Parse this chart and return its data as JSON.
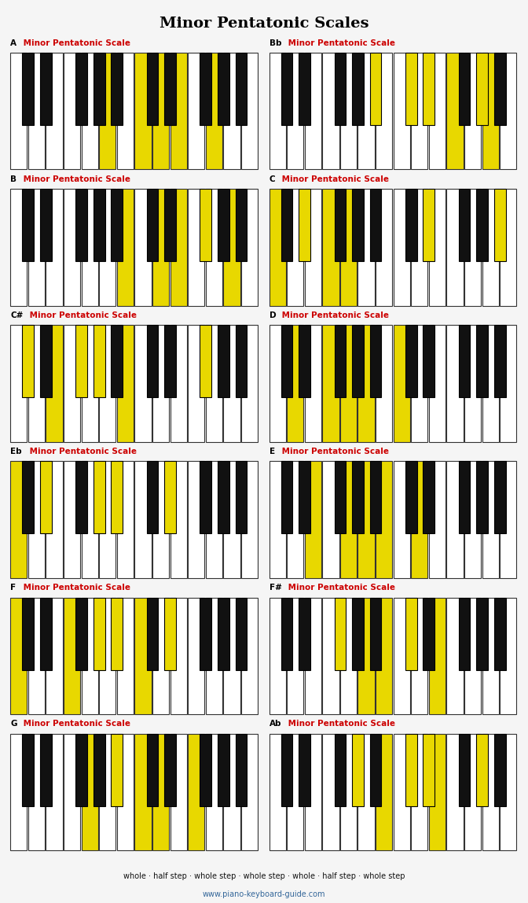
{
  "title": "Minor Pentatonic Scales",
  "subtitle": "whole · half step · whole step · whole step · whole · half step · whole step",
  "website": "www.piano-keyboard-guide.com",
  "bg_color": "#f5f5f5",
  "highlight_yellow": "#E8D800",
  "highlight_red": "#CC2200",
  "label_color_root": "#CC0000",
  "label_color_rest": "#CC0000",
  "keyboards": [
    {
      "label_root": "A",
      "label_rest": " Minor Pentatonic Scale",
      "white_keys": 14,
      "white_highlighted": [
        5,
        7,
        8,
        9,
        11
      ],
      "black_highlighted": []
    },
    {
      "label_root": "Bb",
      "label_rest": " Minor Pentatonic Scale",
      "white_keys": 14,
      "white_highlighted": [
        10,
        12
      ],
      "black_highlighted": [
        4,
        5,
        6,
        8
      ]
    },
    {
      "label_root": "B",
      "label_rest": " Minor Pentatonic Scale",
      "white_keys": 14,
      "white_highlighted": [
        6,
        8,
        9,
        12
      ],
      "black_highlighted": [
        7
      ]
    },
    {
      "label_root": "C",
      "label_rest": " Minor Pentatonic Scale",
      "white_keys": 14,
      "white_highlighted": [
        0,
        3,
        4
      ],
      "black_highlighted": [
        1,
        6,
        9
      ]
    },
    {
      "label_root": "C#",
      "label_rest": " Minor Pentatonic Scale",
      "white_keys": 14,
      "white_highlighted": [
        2,
        6
      ],
      "black_highlighted": [
        0,
        2,
        3,
        7
      ]
    },
    {
      "label_root": "D",
      "label_rest": " Minor Pentatonic Scale",
      "white_keys": 14,
      "white_highlighted": [
        1,
        3,
        4,
        5,
        7
      ],
      "black_highlighted": []
    },
    {
      "label_root": "Eb",
      "label_rest": " Minor Pentatonic Scale",
      "white_keys": 14,
      "white_highlighted": [
        0
      ],
      "black_highlighted": [
        1,
        3,
        4,
        6
      ]
    },
    {
      "label_root": "E",
      "label_rest": " Minor Pentatonic Scale",
      "white_keys": 14,
      "white_highlighted": [
        2,
        4,
        5,
        6,
        8
      ],
      "black_highlighted": []
    },
    {
      "label_root": "F",
      "label_rest": " Minor Pentatonic Scale",
      "white_keys": 14,
      "white_highlighted": [
        0,
        3,
        7
      ],
      "black_highlighted": [
        3,
        4,
        6
      ]
    },
    {
      "label_root": "F#",
      "label_rest": " Minor Pentatonic Scale",
      "white_keys": 14,
      "white_highlighted": [
        5,
        6,
        9
      ],
      "black_highlighted": [
        2,
        5
      ]
    },
    {
      "label_root": "G",
      "label_rest": " Minor Pentatonic Scale",
      "white_keys": 14,
      "white_highlighted": [
        4,
        7,
        8,
        10
      ],
      "black_highlighted": [
        4
      ]
    },
    {
      "label_root": "Ab",
      "label_rest": " Minor Pentatonic Scale",
      "white_keys": 14,
      "white_highlighted": [
        6,
        9
      ],
      "black_highlighted": [
        3,
        5,
        6,
        8
      ]
    }
  ]
}
